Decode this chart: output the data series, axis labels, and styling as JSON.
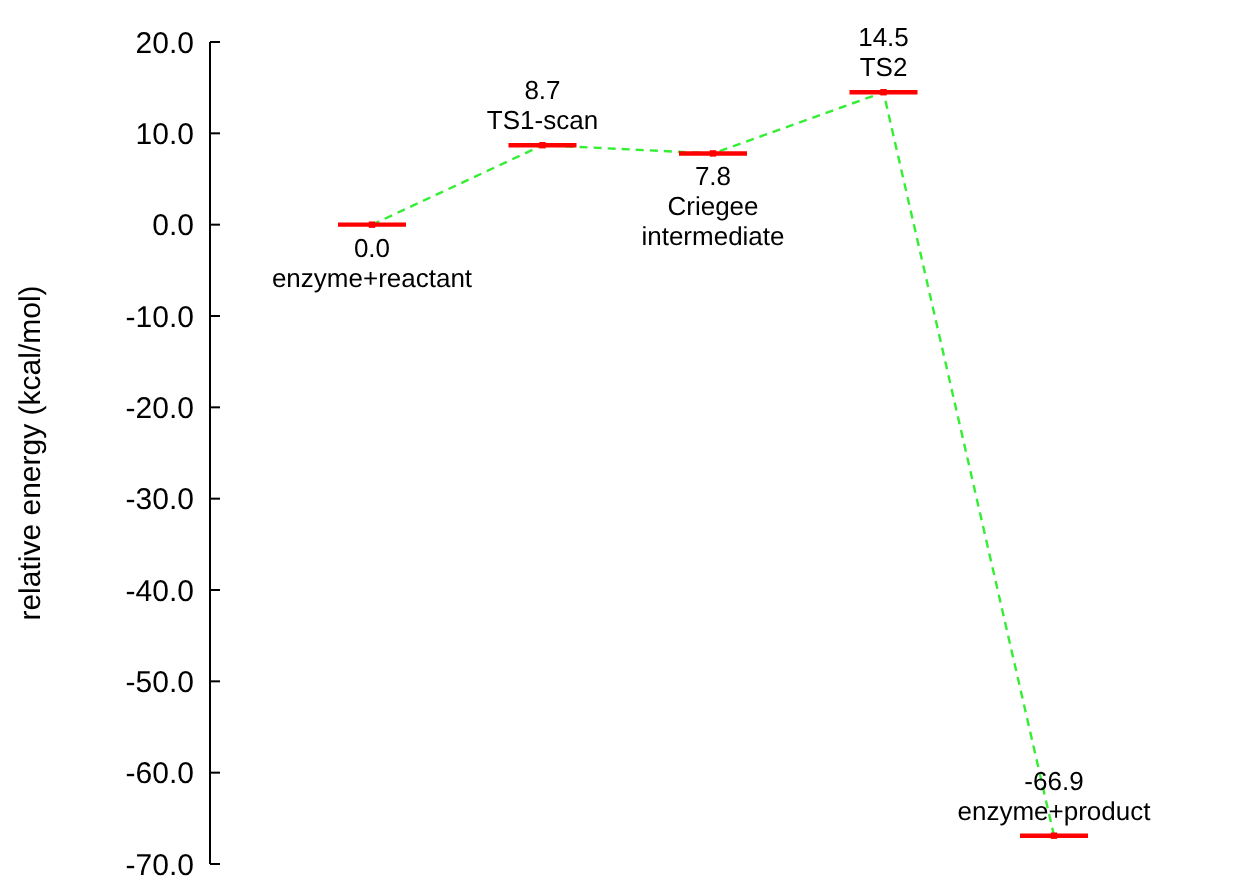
{
  "chart_data": {
    "type": "line",
    "ylabel": "relative energy (kcal/mol)",
    "categories": [
      null,
      null,
      null,
      null,
      null
    ],
    "ylim": [
      -70,
      20
    ],
    "yticks": [
      {
        "value": -70,
        "label": "-70.0"
      },
      {
        "value": -60,
        "label": "-60.0"
      },
      {
        "value": -50,
        "label": "-50.0"
      },
      {
        "value": -40,
        "label": "-40.0"
      },
      {
        "value": -30,
        "label": "-30.0"
      },
      {
        "value": -20,
        "label": "-20.0"
      },
      {
        "value": -10,
        "label": "-10.0"
      },
      {
        "value": 0,
        "label": "0.0"
      },
      {
        "value": 10,
        "label": "10.0"
      },
      {
        "value": 20,
        "label": "20.0"
      }
    ],
    "tick_labels": "y",
    "series": [
      {
        "color": "#33ee33",
        "line_style": "dashed",
        "values": [
          0,
          8.7,
          7.8,
          14.5,
          -66.9
        ]
      },
      {
        "type": "scatter",
        "color": "#ff0000",
        "marker": "square",
        "values": [
          0,
          8.7,
          7.8,
          14.5,
          -66.9
        ]
      }
    ],
    "annotations": [
      {
        "text": "0.0\nenzyme+reactant",
        "y": 0
      },
      {
        "text": "8.7\nTS1-scan",
        "y": 8.7
      },
      {
        "text": "7.8\nCriegee\nintermediate",
        "y": 7.8
      },
      {
        "text": "14.5\nTS2",
        "y": 14.5
      },
      {
        "text": "-66.9\nenzyme+product",
        "y": -66.9
      }
    ]
  }
}
